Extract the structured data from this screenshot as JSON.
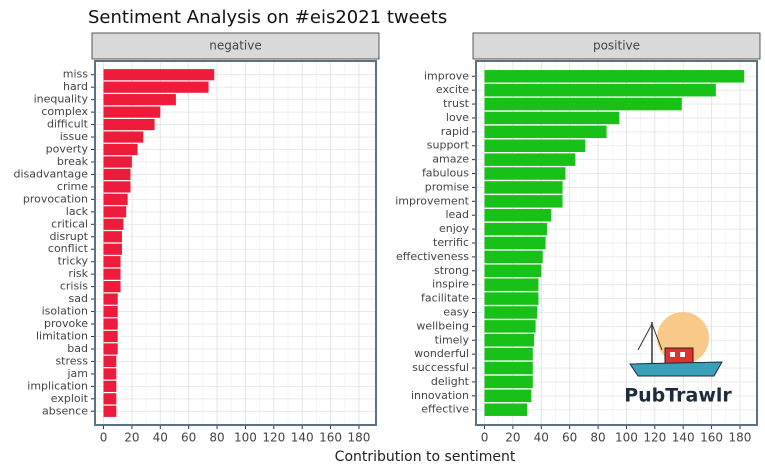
{
  "title": "Sentiment Analysis on #eis2021 tweets",
  "x_label": "Contribution to sentiment",
  "logo_text": "PubTrawlr",
  "chart_data": [
    {
      "type": "bar",
      "orientation": "horizontal",
      "title": "negative",
      "color": "#ee1c3a",
      "categories": [
        "miss",
        "hard",
        "inequality",
        "complex",
        "difficult",
        "issue",
        "poverty",
        "break",
        "disadvantage",
        "crime",
        "provocation",
        "lack",
        "critical",
        "disrupt",
        "conflict",
        "tricky",
        "risk",
        "crisis",
        "sad",
        "isolation",
        "provoke",
        "limitation",
        "bad",
        "stress",
        "jam",
        "implication",
        "exploit",
        "absence"
      ],
      "values": [
        78,
        74,
        51,
        40,
        36,
        28,
        24,
        20,
        19,
        19,
        17,
        16,
        14,
        13,
        13,
        12,
        12,
        12,
        10,
        10,
        10,
        10,
        10,
        9,
        9,
        9,
        9,
        9
      ],
      "xlim": [
        -6,
        192
      ],
      "xticks": [
        0,
        20,
        40,
        60,
        80,
        100,
        120,
        140,
        160,
        180
      ],
      "grid": true
    },
    {
      "type": "bar",
      "orientation": "horizontal",
      "title": "positive",
      "color": "#17c117",
      "categories": [
        "improve",
        "excite",
        "trust",
        "love",
        "rapid",
        "support",
        "amaze",
        "fabulous",
        "promise",
        "improvement",
        "lead",
        "enjoy",
        "terrific",
        "effectiveness",
        "strong",
        "inspire",
        "facilitate",
        "easy",
        "wellbeing",
        "timely",
        "wonderful",
        "successful",
        "delight",
        "innovation",
        "effective"
      ],
      "values": [
        183,
        163,
        139,
        95,
        86,
        71,
        64,
        57,
        55,
        55,
        47,
        44,
        43,
        41,
        40,
        38,
        38,
        37,
        36,
        35,
        34,
        34,
        34,
        33,
        30
      ],
      "xlim": [
        -6,
        192
      ],
      "xticks": [
        0,
        20,
        40,
        60,
        80,
        100,
        120,
        140,
        160,
        180
      ],
      "grid": true
    }
  ]
}
